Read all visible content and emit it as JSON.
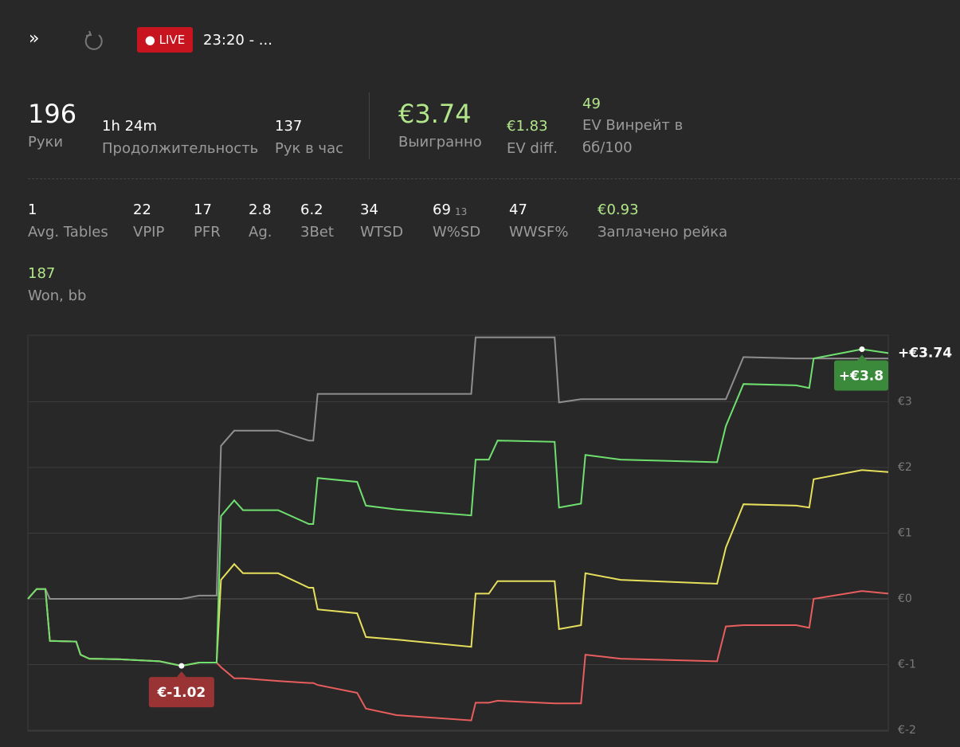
{
  "top_bar": {
    "live": "LIVE",
    "time": "23:20 - ..."
  },
  "summary": [
    {
      "value": "196",
      "label": "Руки"
    },
    {
      "value": "1h 24m",
      "label": "Продолжительность"
    },
    {
      "value": "137",
      "label": "Рук в час"
    },
    {
      "value": "€3.74",
      "label": "Выигранно"
    },
    {
      "value": "€1.83",
      "label": "EV diff."
    },
    {
      "value": "49",
      "label": "EV Винрейт в бб/100"
    }
  ],
  "stats": [
    {
      "value": "1",
      "label": "Avg. Tables"
    },
    {
      "value": "22",
      "label": "VPIP"
    },
    {
      "value": "17",
      "label": "PFR"
    },
    {
      "value": "2.8",
      "label": "Ag."
    },
    {
      "value": "6.2",
      "label": "3Bet"
    },
    {
      "value": "34",
      "label": "WTSD"
    },
    {
      "value": "69",
      "sub": "13",
      "label": "W%SD"
    },
    {
      "value": "47",
      "label": "WWSF%"
    },
    {
      "value": "€0.93",
      "label": "Заплачено рейка"
    },
    {
      "value": "187",
      "label": "Won, bb"
    }
  ],
  "chart_data": {
    "type": "line",
    "x": [
      0,
      2,
      4,
      5,
      11,
      12,
      14,
      21,
      30,
      35,
      39,
      43,
      44,
      47,
      49,
      57,
      64,
      65,
      66,
      75,
      77,
      84,
      101,
      102,
      105,
      107,
      120,
      121,
      126,
      127,
      135,
      157,
      159,
      163,
      175,
      178,
      179,
      190,
      196
    ],
    "xlim": [
      0,
      196
    ],
    "ylim": [
      -2,
      4
    ],
    "yticks": [
      {
        "value": 3,
        "label": "€3"
      },
      {
        "value": 2,
        "label": "€2"
      },
      {
        "value": 1,
        "label": "€1"
      },
      {
        "value": 0,
        "label": "€0"
      },
      {
        "value": -1,
        "label": "€-1"
      },
      {
        "value": -2,
        "label": "€-2"
      }
    ],
    "grid": true,
    "series": [
      {
        "color": "#6fe06f",
        "values": [
          0,
          0.15,
          0.15,
          -0.64,
          -0.65,
          -0.85,
          -0.91,
          -0.92,
          -0.95,
          -1.02,
          -0.97,
          -0.97,
          1.26,
          1.5,
          1.35,
          1.35,
          1.14,
          1.14,
          1.84,
          1.78,
          1.42,
          1.36,
          1.27,
          2.12,
          2.12,
          2.41,
          2.39,
          1.39,
          1.45,
          2.19,
          2.12,
          2.08,
          2.63,
          3.27,
          3.25,
          3.21,
          3.66,
          3.8,
          3.74
        ]
      },
      {
        "color": "#8e8e8e",
        "values": [
          0,
          0.15,
          0.15,
          0,
          0,
          0,
          0,
          0,
          0,
          0,
          0.05,
          0.05,
          2.33,
          2.56,
          2.56,
          2.56,
          2.41,
          2.41,
          3.12,
          3.12,
          3.12,
          3.12,
          3.12,
          3.98,
          3.98,
          3.98,
          3.98,
          2.99,
          3.04,
          3.04,
          3.04,
          3.04,
          3.04,
          3.68,
          3.66,
          3.66,
          3.66,
          3.66,
          3.66
        ]
      },
      {
        "color": "#e6df5c",
        "values": [
          0,
          0.15,
          0.15,
          -0.64,
          -0.65,
          -0.85,
          -0.91,
          -0.92,
          -0.95,
          -1.02,
          -0.97,
          -0.97,
          0.29,
          0.53,
          0.39,
          0.39,
          0.17,
          0.17,
          -0.16,
          -0.22,
          -0.58,
          -0.62,
          -0.73,
          0.08,
          0.08,
          0.27,
          0.27,
          -0.46,
          -0.4,
          0.39,
          0.29,
          0.23,
          0.78,
          1.44,
          1.42,
          1.39,
          1.82,
          1.96,
          1.93
        ]
      },
      {
        "color": "#e85d5d",
        "values": [
          0,
          0.15,
          0.15,
          -0.64,
          -0.65,
          -0.85,
          -0.91,
          -0.92,
          -0.95,
          -1.02,
          -0.97,
          -0.97,
          -1.04,
          -1.21,
          -1.21,
          -1.25,
          -1.28,
          -1.28,
          -1.31,
          -1.43,
          -1.67,
          -1.77,
          -1.85,
          -1.58,
          -1.58,
          -1.55,
          -1.59,
          -1.59,
          -1.59,
          -0.85,
          -0.91,
          -0.95,
          -0.42,
          -0.4,
          -0.4,
          -0.44,
          0,
          0.12,
          0.08
        ]
      }
    ],
    "annotations": {
      "end": "+€3.74",
      "max": "+€3.8",
      "min": "€-1.02"
    }
  }
}
